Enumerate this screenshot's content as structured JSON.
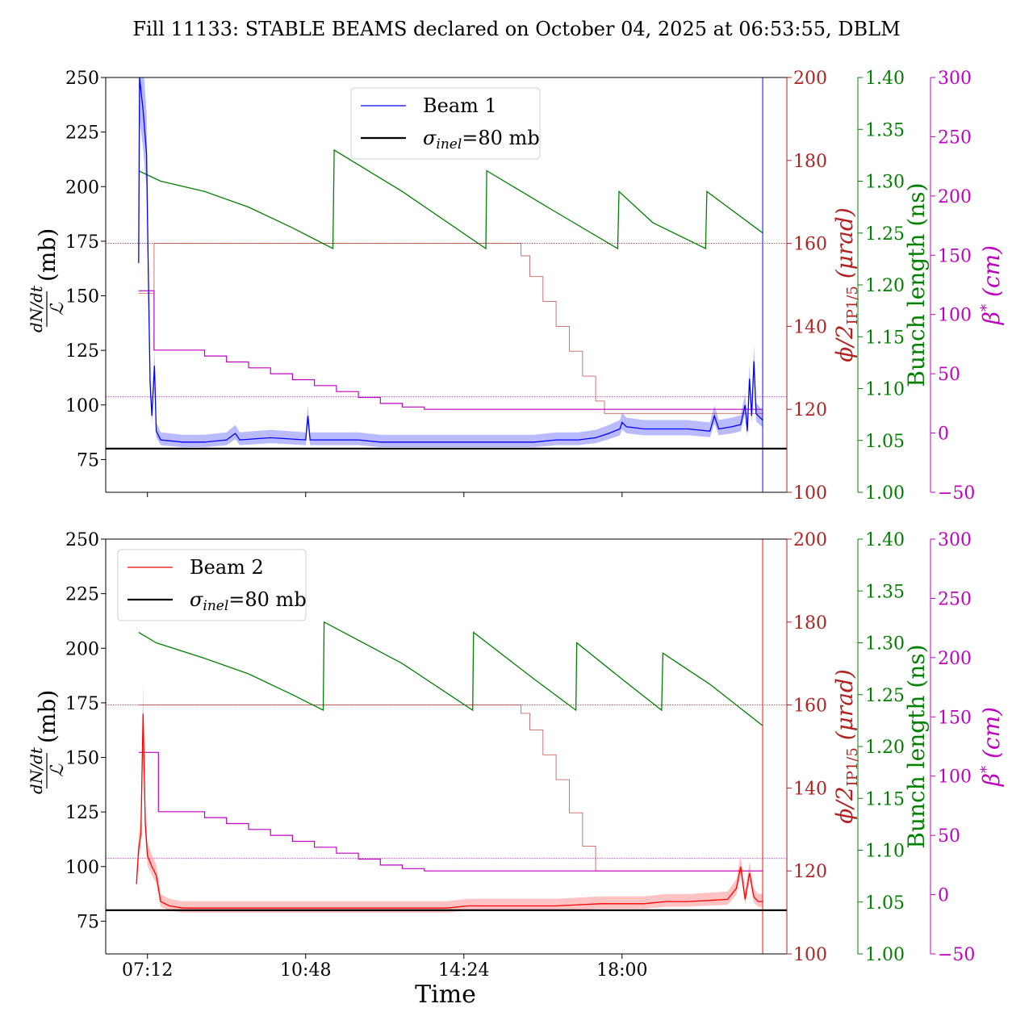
{
  "chart_data": {
    "title": "Fill 11133: STABLE BEAMS declared on October 04, 2025 at 06:53:55, DBLM",
    "xlabel": "Time",
    "xlim_hours": [
      6.25,
      21.75
    ],
    "xticks": [
      {
        "label": "07:12",
        "hours": 7.2
      },
      {
        "label": "10:48",
        "hours": 10.8
      },
      {
        "label": "14:24",
        "hours": 14.4
      },
      {
        "label": "18:00",
        "hours": 18.0
      }
    ],
    "colors": {
      "beam1": "#0000ff",
      "beam1_band": "#8c8cff",
      "beam2": "#ff0000",
      "beam2_band": "#ff9b9b",
      "xing": "#b22222",
      "bunch": "#008000",
      "beta": "#c000c0",
      "sigma": "#000000",
      "axis": "#000000"
    },
    "axes": {
      "left": {
        "label_num": "dN/dt",
        "label_den": "ℒ",
        "label_unit": "(mb)",
        "ylim": [
          60,
          250
        ],
        "ticks": [
          75,
          100,
          125,
          150,
          175,
          200,
          225,
          250
        ]
      },
      "xing": {
        "label_main": "ϕ/2",
        "label_sub": "IP1/5",
        "label_unit": "(μrad)",
        "ylim": [
          100,
          200
        ],
        "ticks": [
          100,
          120,
          140,
          160,
          180,
          200
        ]
      },
      "bunch": {
        "label": "Bunch length (ns)",
        "ylim": [
          1.0,
          1.4
        ],
        "ticks": [
          "1.00",
          "1.05",
          "1.10",
          "1.15",
          "1.20",
          "1.25",
          "1.30",
          "1.35",
          "1.40"
        ]
      },
      "beta": {
        "label_main": "β",
        "label_sup": "*",
        "label_unit": "(cm)",
        "ylim": [
          -50,
          300
        ],
        "ticks": [
          "−50",
          "0",
          "50",
          "100",
          "150",
          "200",
          "250",
          "300"
        ]
      }
    },
    "panels": [
      {
        "type": "line",
        "beam_name": "Beam 1",
        "sigma_label_main": "σ",
        "sigma_label_sub": "inel",
        "sigma_label_rest": "=80 mb",
        "sigma_inel_mb": 80,
        "legend_position": "upper-center",
        "beam_series": [
          [
            7.0,
            165
          ],
          [
            7.02,
            250
          ],
          [
            7.1,
            235
          ],
          [
            7.18,
            215
          ],
          [
            7.22,
            160
          ],
          [
            7.26,
            110
          ],
          [
            7.3,
            95
          ],
          [
            7.36,
            118
          ],
          [
            7.4,
            88
          ],
          [
            7.5,
            84
          ],
          [
            8.0,
            83
          ],
          [
            8.5,
            83
          ],
          [
            9.0,
            84
          ],
          [
            9.2,
            87
          ],
          [
            9.3,
            84
          ],
          [
            10.0,
            85
          ],
          [
            10.8,
            84
          ],
          [
            10.85,
            95
          ],
          [
            10.9,
            84
          ],
          [
            11.5,
            84
          ],
          [
            12.0,
            84
          ],
          [
            12.5,
            83
          ],
          [
            13.0,
            83
          ],
          [
            13.5,
            83
          ],
          [
            14.0,
            83
          ],
          [
            14.5,
            83
          ],
          [
            15.0,
            83
          ],
          [
            15.5,
            83
          ],
          [
            16.0,
            83
          ],
          [
            16.5,
            84
          ],
          [
            17.0,
            84
          ],
          [
            17.4,
            85
          ],
          [
            17.7,
            87
          ],
          [
            17.95,
            89
          ],
          [
            18.0,
            92
          ],
          [
            18.1,
            90
          ],
          [
            18.5,
            89
          ],
          [
            19.0,
            89
          ],
          [
            19.5,
            89
          ],
          [
            20.0,
            88
          ],
          [
            20.1,
            95
          ],
          [
            20.2,
            89
          ],
          [
            20.5,
            90
          ],
          [
            20.7,
            91
          ],
          [
            20.8,
            100
          ],
          [
            20.85,
            88
          ],
          [
            20.9,
            112
          ],
          [
            20.95,
            95
          ],
          [
            21.0,
            120
          ],
          [
            21.05,
            96
          ],
          [
            21.1,
            95
          ],
          [
            21.2,
            93
          ]
        ],
        "xing_urad": [
          [
            7.0,
            148
          ],
          [
            7.15,
            148
          ],
          [
            7.35,
            160
          ],
          [
            15.0,
            160
          ],
          [
            15.5,
            160
          ],
          [
            15.7,
            157
          ],
          [
            15.9,
            152
          ],
          [
            16.2,
            146
          ],
          [
            16.5,
            140
          ],
          [
            16.8,
            134
          ],
          [
            17.1,
            128
          ],
          [
            17.4,
            122
          ],
          [
            17.6,
            119
          ],
          [
            21.2,
            119
          ]
        ],
        "bunch_ns": [
          [
            7.0,
            1.31
          ],
          [
            7.5,
            1.3
          ],
          [
            8.5,
            1.29
          ],
          [
            9.5,
            1.275
          ],
          [
            10.5,
            1.255
          ],
          [
            11.42,
            1.235
          ],
          [
            11.45,
            1.33
          ],
          [
            13.0,
            1.29
          ],
          [
            14.9,
            1.235
          ],
          [
            14.92,
            1.31
          ],
          [
            16.5,
            1.27
          ],
          [
            17.9,
            1.235
          ],
          [
            17.93,
            1.29
          ],
          [
            18.7,
            1.26
          ],
          [
            19.9,
            1.235
          ],
          [
            19.93,
            1.29
          ],
          [
            21.2,
            1.25
          ]
        ],
        "beta_cm": [
          [
            7.0,
            120
          ],
          [
            7.25,
            120
          ],
          [
            7.35,
            70
          ],
          [
            8.0,
            70
          ],
          [
            8.5,
            65
          ],
          [
            9.0,
            60
          ],
          [
            9.5,
            55
          ],
          [
            10.0,
            50
          ],
          [
            10.5,
            45
          ],
          [
            11.0,
            40
          ],
          [
            11.5,
            35
          ],
          [
            12.0,
            30
          ],
          [
            12.5,
            25
          ],
          [
            13.0,
            22
          ],
          [
            13.5,
            20
          ],
          [
            14.0,
            20
          ],
          [
            21.2,
            20
          ]
        ]
      },
      {
        "type": "line",
        "beam_name": "Beam 2",
        "sigma_label_main": "σ",
        "sigma_label_sub": "inel",
        "sigma_label_rest": "=80 mb",
        "sigma_inel_mb": 80,
        "legend_position": "upper-left",
        "beam_series": [
          [
            6.95,
            92
          ],
          [
            7.0,
            108
          ],
          [
            7.05,
            115
          ],
          [
            7.1,
            170
          ],
          [
            7.15,
            120
          ],
          [
            7.2,
            105
          ],
          [
            7.3,
            100
          ],
          [
            7.4,
            96
          ],
          [
            7.5,
            84
          ],
          [
            7.7,
            82
          ],
          [
            8.0,
            81
          ],
          [
            9.0,
            81
          ],
          [
            10.0,
            81
          ],
          [
            11.0,
            81
          ],
          [
            12.0,
            81
          ],
          [
            13.0,
            81
          ],
          [
            14.0,
            81
          ],
          [
            14.5,
            82
          ],
          [
            15.0,
            82
          ],
          [
            16.0,
            82
          ],
          [
            16.5,
            82
          ],
          [
            17.0,
            82.5
          ],
          [
            17.5,
            83
          ],
          [
            18.0,
            83
          ],
          [
            18.5,
            83
          ],
          [
            19.0,
            84
          ],
          [
            19.5,
            84
          ],
          [
            20.0,
            84.5
          ],
          [
            20.4,
            85
          ],
          [
            20.6,
            90
          ],
          [
            20.7,
            100
          ],
          [
            20.8,
            85
          ],
          [
            20.9,
            97
          ],
          [
            21.0,
            86
          ],
          [
            21.1,
            84
          ],
          [
            21.2,
            84
          ]
        ],
        "xing_urad": [
          [
            7.0,
            160
          ],
          [
            15.0,
            160
          ],
          [
            15.5,
            160
          ],
          [
            15.7,
            158
          ],
          [
            15.9,
            154
          ],
          [
            16.2,
            148
          ],
          [
            16.5,
            142
          ],
          [
            16.8,
            134
          ],
          [
            17.1,
            126
          ],
          [
            17.4,
            120
          ],
          [
            21.2,
            120
          ]
        ],
        "bunch_ns": [
          [
            7.0,
            1.31
          ],
          [
            7.4,
            1.3
          ],
          [
            8.5,
            1.285
          ],
          [
            9.5,
            1.27
          ],
          [
            10.5,
            1.25
          ],
          [
            11.2,
            1.235
          ],
          [
            11.22,
            1.32
          ],
          [
            13.0,
            1.28
          ],
          [
            14.6,
            1.235
          ],
          [
            14.62,
            1.31
          ],
          [
            16.0,
            1.265
          ],
          [
            16.95,
            1.235
          ],
          [
            16.97,
            1.3
          ],
          [
            18.0,
            1.265
          ],
          [
            18.9,
            1.235
          ],
          [
            18.93,
            1.29
          ],
          [
            20.0,
            1.26
          ],
          [
            21.2,
            1.22
          ]
        ],
        "beta_cm": [
          [
            7.0,
            120
          ],
          [
            7.35,
            120
          ],
          [
            7.45,
            70
          ],
          [
            8.0,
            70
          ],
          [
            8.5,
            65
          ],
          [
            9.0,
            60
          ],
          [
            9.5,
            55
          ],
          [
            10.0,
            50
          ],
          [
            10.5,
            45
          ],
          [
            11.0,
            40
          ],
          [
            11.5,
            35
          ],
          [
            12.0,
            30
          ],
          [
            12.5,
            25
          ],
          [
            13.0,
            22
          ],
          [
            13.5,
            20
          ],
          [
            14.0,
            20
          ],
          [
            21.2,
            20
          ]
        ]
      }
    ]
  }
}
